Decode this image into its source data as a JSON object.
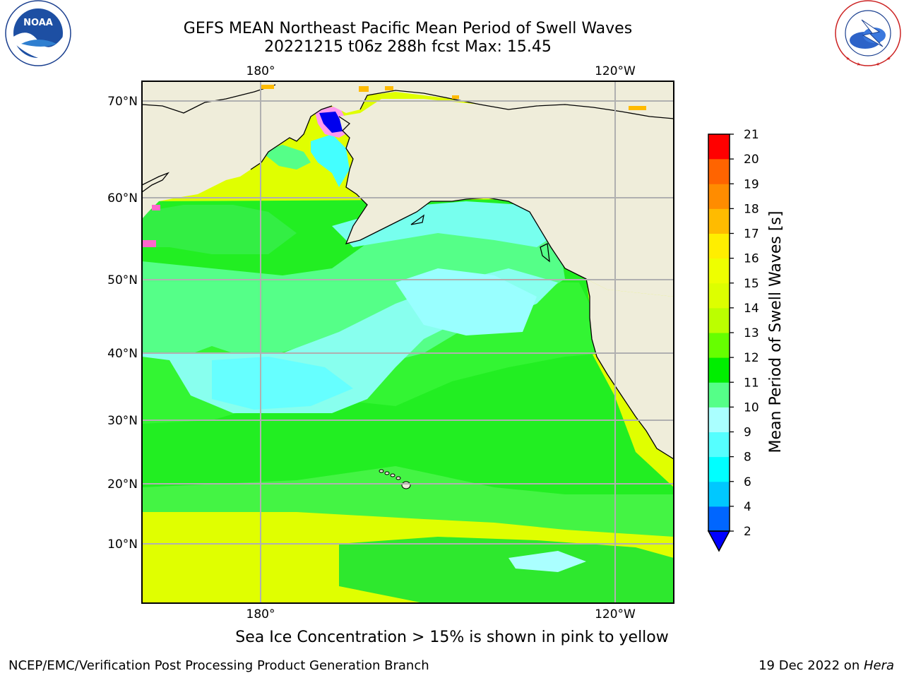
{
  "title": {
    "line1": "GEFS MEAN Northeast Pacific Mean Period of Swell Waves",
    "line2": "20221215 t06z 288h fcst   Max: 15.45"
  },
  "logos": {
    "left": {
      "icon": "noaa-logo",
      "text": "NOAA",
      "ring_text": "NATIONAL OCEANIC AND ATMOSPHERIC ADMINISTRATION · U.S. DEPARTMENT OF COMMERCE"
    },
    "right": {
      "icon": "nws-logo",
      "ring_text": "NATIONAL WEATHER SERVICE"
    }
  },
  "map": {
    "top_lon_labels": [
      "180°",
      "120°W"
    ],
    "bottom_lon_labels": [
      "180°",
      "120°W"
    ],
    "lat_labels": [
      "70°N",
      "60°N",
      "50°N",
      "40°N",
      "30°N",
      "20°N",
      "10°N"
    ],
    "colors": {
      "land": "#efedda",
      "grid": "#b0b0b0",
      "coast": "#000000"
    }
  },
  "colorbar": {
    "label": "Mean Period of Swell Waves [s]",
    "ticks": [
      "2",
      "4",
      "6",
      "8",
      "9",
      "10",
      "11",
      "12",
      "13",
      "14",
      "15",
      "16",
      "17",
      "18",
      "19",
      "20",
      "21"
    ],
    "colors": [
      "#0066ff",
      "#00c8ff",
      "#00ffff",
      "#55ffff",
      "#aaffff",
      "#55ff88",
      "#00ee00",
      "#66ff00",
      "#bbff00",
      "#ddff00",
      "#eeff00",
      "#ffee00",
      "#ffbb00",
      "#ff8c00",
      "#ff6400",
      "#ff3200",
      "#ff0000"
    ],
    "under_color": "#0000ff"
  },
  "footer": {
    "note": "Sea Ice Concentration > 15% is shown in pink to yellow",
    "left": "NCEP/EMC/Verification Post Processing Product Generation Branch",
    "right_date": "19 Dec 2022 on ",
    "right_host": "Hera"
  }
}
